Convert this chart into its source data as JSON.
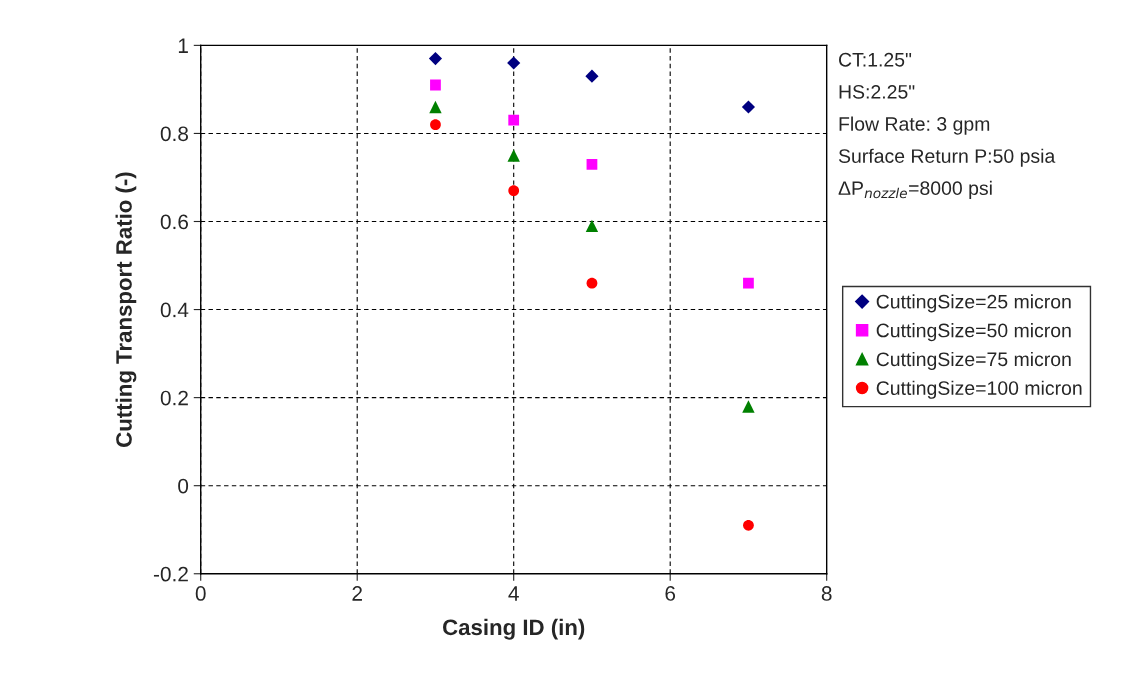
{
  "chart_data": {
    "type": "scatter",
    "xlabel": "Casing ID (in)",
    "ylabel": "Cutting Transport Ratio (-)",
    "x": [
      3,
      4,
      5,
      7
    ],
    "series": [
      {
        "name": "CuttingSize=25 micron",
        "color": "#000080",
        "marker": "diamond",
        "values": [
          0.97,
          0.96,
          0.93,
          0.86
        ]
      },
      {
        "name": "CuttingSize=50 micron",
        "color": "#ff00ff",
        "marker": "square",
        "values": [
          0.91,
          0.83,
          0.73,
          0.46
        ]
      },
      {
        "name": "CuttingSize=75 micron",
        "color": "#008000",
        "marker": "triangle",
        "values": [
          0.86,
          0.75,
          0.59,
          0.18
        ]
      },
      {
        "name": "CuttingSize=100 micron",
        "color": "#ff0000",
        "marker": "circle",
        "values": [
          0.82,
          0.67,
          0.46,
          -0.09
        ]
      }
    ],
    "xlim": [
      0,
      8
    ],
    "xticks": [
      0,
      2,
      4,
      6,
      8
    ],
    "ylim": [
      -0.2,
      1
    ],
    "yticks": [
      -0.2,
      0,
      0.2,
      0.4,
      0.6,
      0.8,
      1
    ],
    "grid": true,
    "legend": "right",
    "annotations": [
      "CT:1.25\"",
      "HS:2.25\"",
      "Flow Rate: 3 gpm",
      "Surface Return P:50 psia",
      "ΔP$_{nozzle}$=8000 psi"
    ]
  }
}
